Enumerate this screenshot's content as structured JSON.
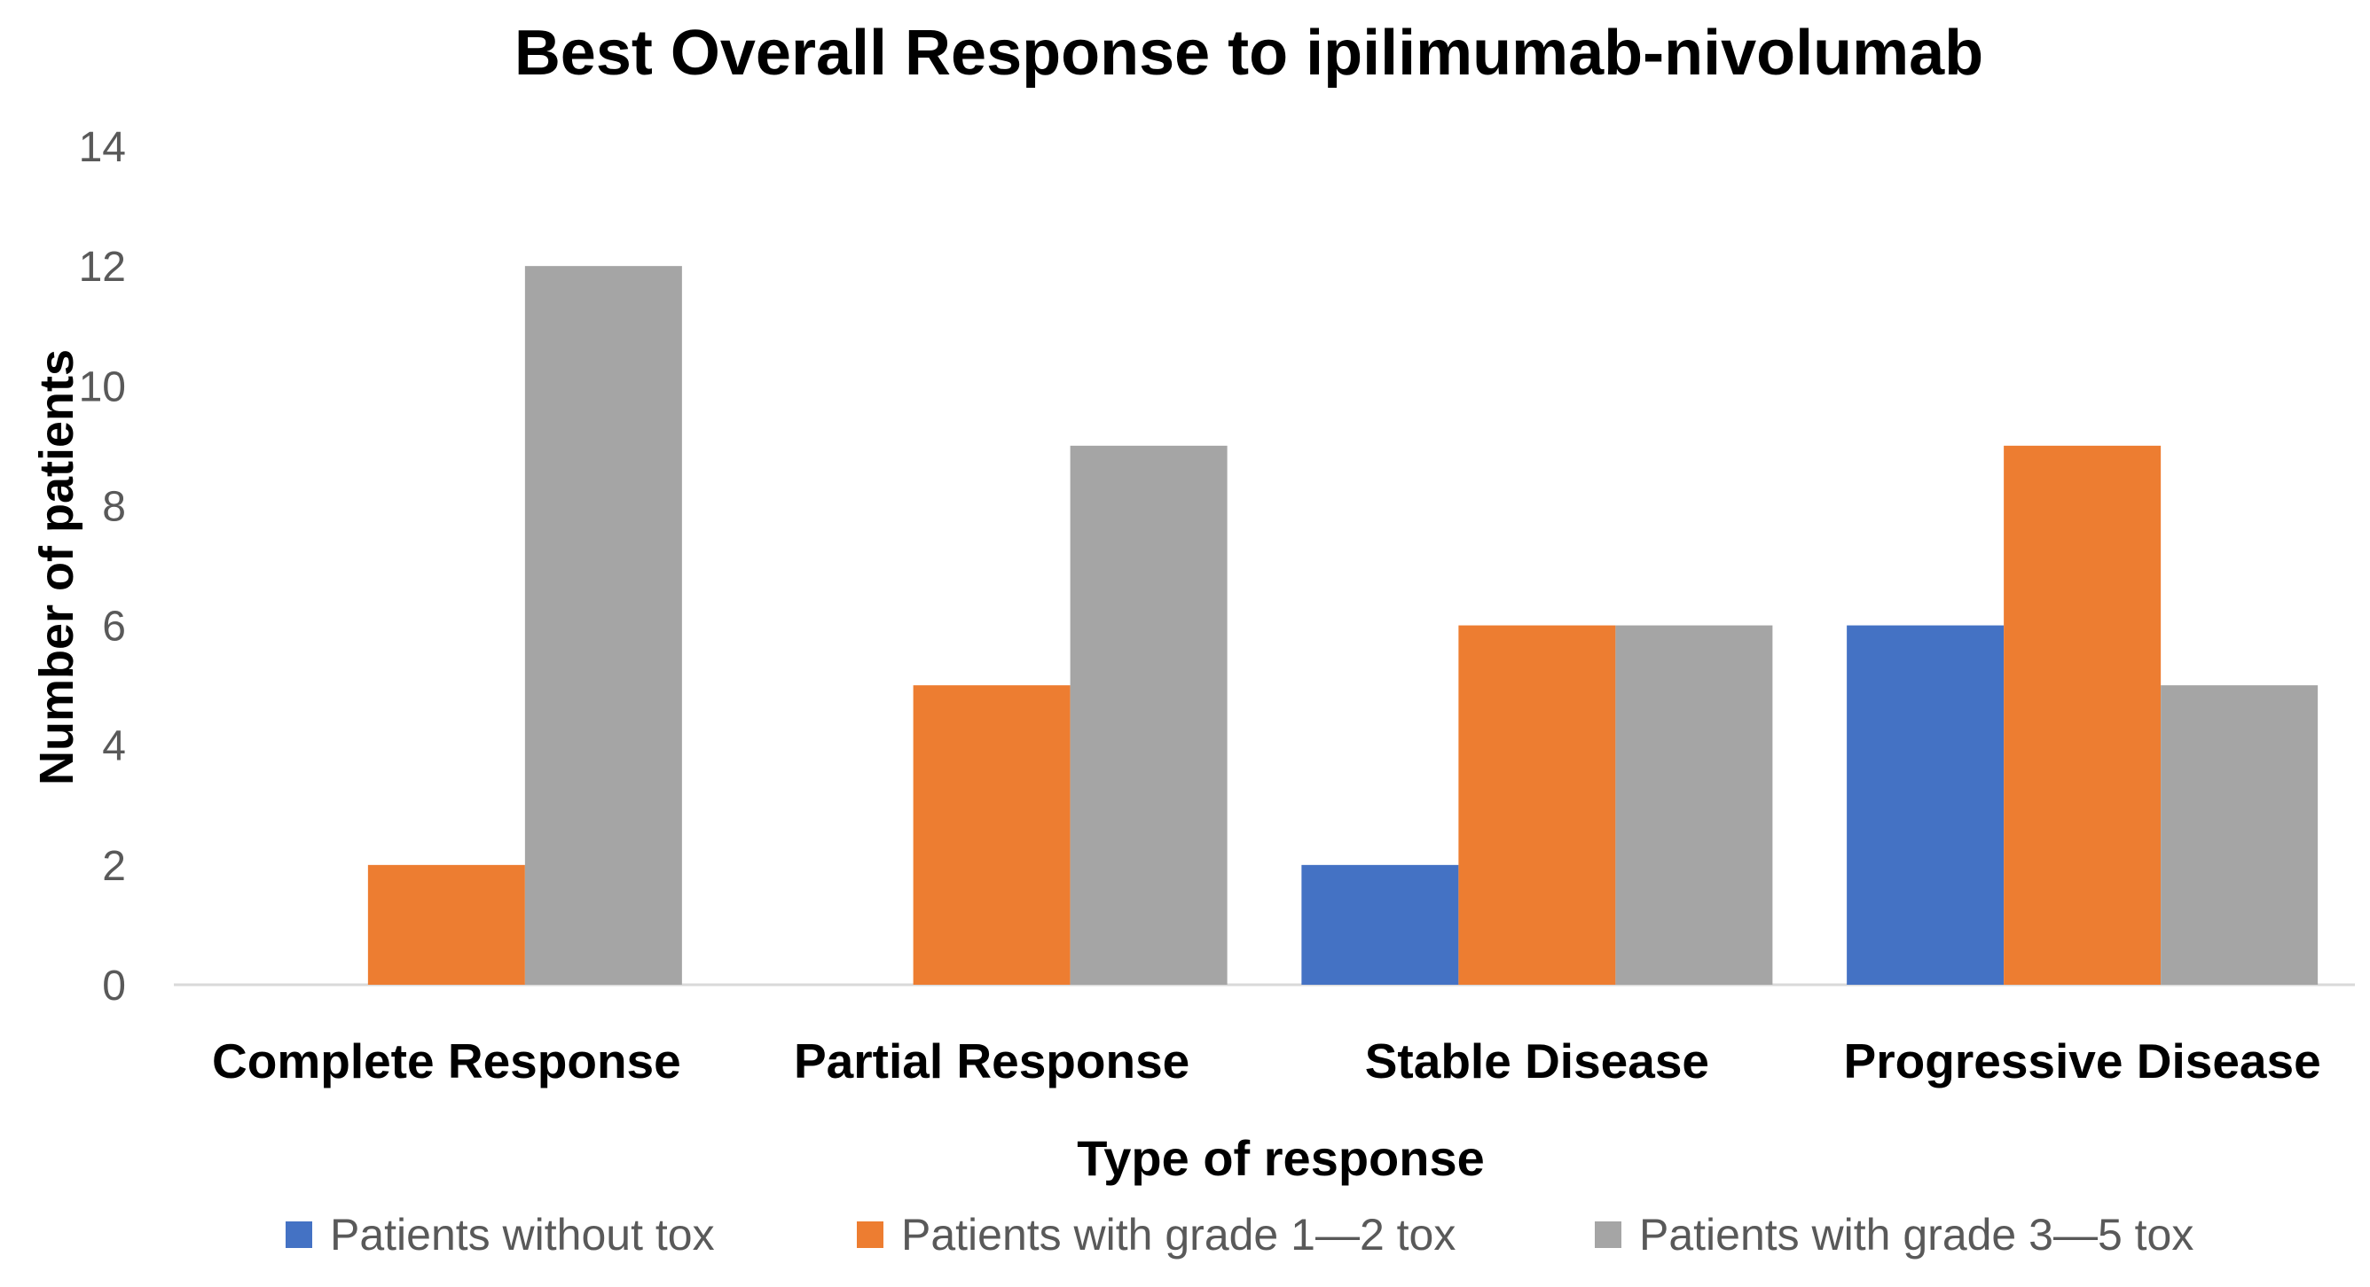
{
  "chart_data": {
    "type": "bar",
    "title": "Best Overall Response to ipilimumab-nivolumab",
    "xlabel": "Type of response",
    "ylabel": "Number of patients",
    "ylim": [
      0,
      14
    ],
    "yticks": [
      "0",
      "2",
      "4",
      "6",
      "8",
      "10",
      "12",
      "14"
    ],
    "grid": false,
    "legend_position": "bottom",
    "categories": [
      "Complete Response",
      "Partial Response",
      "Stable Disease",
      "Progressive Disease"
    ],
    "series": [
      {
        "name": "Patients without tox",
        "color": "#4472C4",
        "values": [
          0,
          0,
          2,
          6
        ]
      },
      {
        "name": "Patients with grade 1—2 tox",
        "color": "#ED7D31",
        "values": [
          2,
          5,
          6,
          9
        ]
      },
      {
        "name": "Patients with grade 3—5 tox",
        "color": "#A5A5A5",
        "values": [
          12,
          9,
          6,
          5
        ]
      }
    ]
  }
}
